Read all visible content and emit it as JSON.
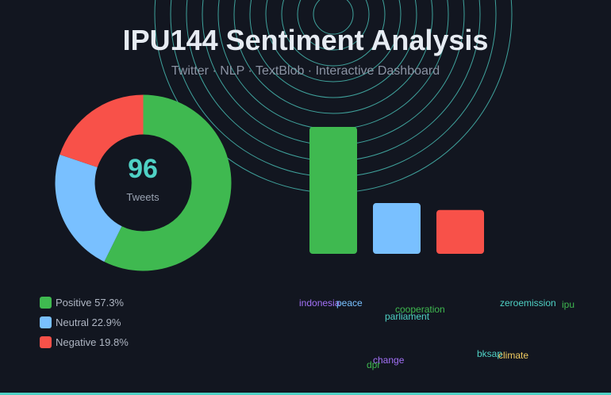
{
  "header": {
    "title": "IPU144 Sentiment Analysis",
    "subtitle": "Twitter · NLP · TextBlob · Interactive Dashboard"
  },
  "summary": {
    "count": "96",
    "count_label": "Tweets"
  },
  "colors": {
    "background": "#121620",
    "accent": "#4fd1c5",
    "positive": "#3fb950",
    "neutral": "#79c0ff",
    "negative": "#f85149"
  },
  "chart_data": {
    "type": "pie",
    "categories": [
      "Positive",
      "Neutral",
      "Negative"
    ],
    "values": [
      57.3,
      22.9,
      19.8
    ],
    "colors": [
      "#3fb950",
      "#79c0ff",
      "#f85149"
    ],
    "legend": [
      "Positive 57.3%",
      "Neutral 22.9%",
      "Negative 19.8%"
    ],
    "legend_placement": "bottom-left"
  },
  "word_cloud": [
    {
      "text": "indonesia",
      "color": "#a371f7"
    },
    {
      "text": "peace",
      "color": "#79c0ff"
    },
    {
      "text": "cooperation",
      "color": "#3fb950"
    },
    {
      "text": "parliament",
      "color": "#4fd1c5"
    },
    {
      "text": "zeroemission",
      "color": "#4fd1c5"
    },
    {
      "text": "ipu",
      "color": "#3fb950"
    },
    {
      "text": "bksap",
      "color": "#4fd1c5"
    },
    {
      "text": "climate",
      "color": "#f2cc60"
    },
    {
      "text": "change",
      "color": "#a371f7"
    },
    {
      "text": "dpr",
      "color": "#3fb950"
    }
  ]
}
